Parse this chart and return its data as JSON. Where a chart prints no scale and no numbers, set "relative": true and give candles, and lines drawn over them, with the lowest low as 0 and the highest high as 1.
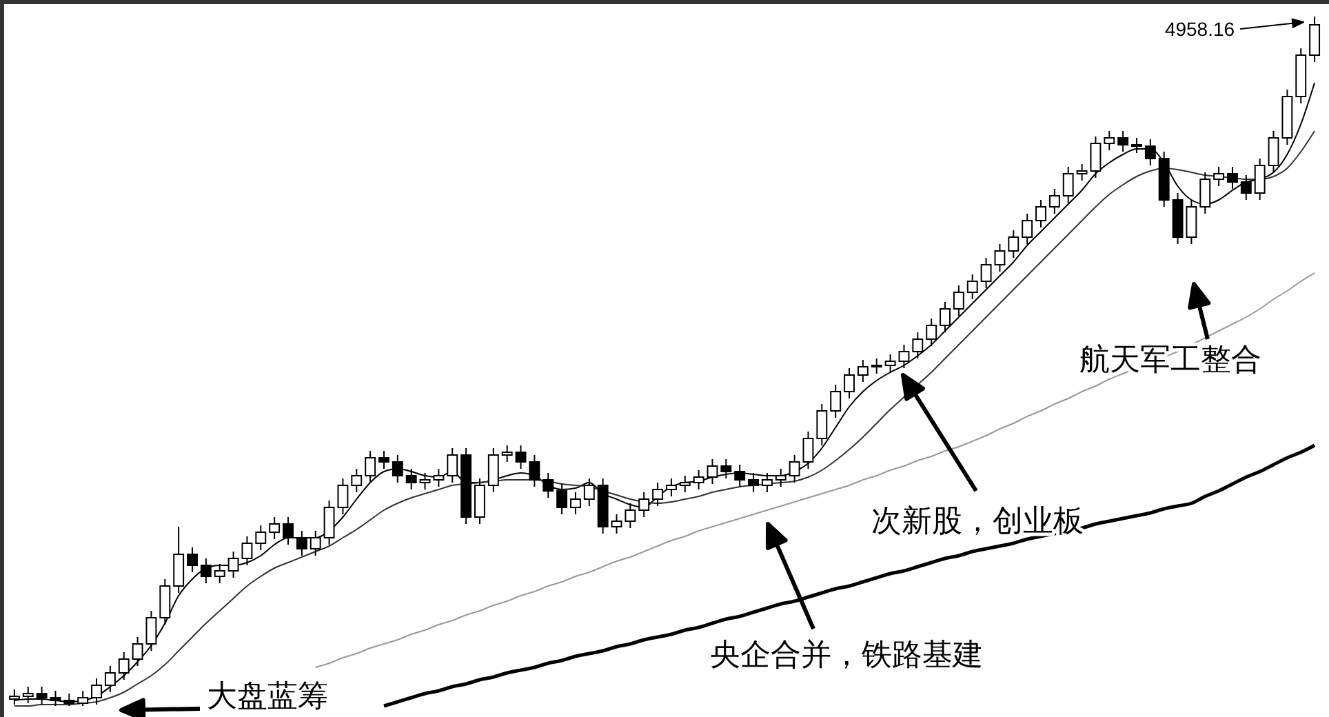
{
  "chart_data": {
    "type": "candlestick",
    "relative": true,
    "categories": [
      null,
      null,
      null,
      null,
      null,
      null,
      null,
      null,
      null,
      null,
      null,
      null,
      null,
      null,
      null,
      null,
      null,
      null,
      null,
      null,
      null,
      null,
      null,
      null,
      null,
      null,
      null,
      null,
      null,
      null,
      null,
      null,
      null,
      null,
      null,
      null,
      null,
      null,
      null,
      null,
      null,
      null,
      null,
      null,
      null,
      null,
      null,
      null,
      null,
      null,
      null,
      null,
      null,
      null,
      null,
      null,
      null,
      null,
      null,
      null,
      null,
      null,
      null,
      null,
      null,
      null,
      null,
      null,
      null,
      null,
      null,
      null,
      null,
      null,
      null,
      null,
      null,
      null,
      null,
      null,
      null,
      null,
      null,
      null,
      null,
      null,
      null,
      null,
      null,
      null,
      null,
      null,
      null,
      null,
      null,
      null
    ],
    "ohlc": [
      [
        0.01,
        0.024,
        0.002,
        0.014
      ],
      [
        0.014,
        0.028,
        0.004,
        0.018
      ],
      [
        0.018,
        0.028,
        0.002,
        0.012
      ],
      [
        0.012,
        0.022,
        0.0,
        0.008
      ],
      [
        0.008,
        0.018,
        0.0,
        0.004
      ],
      [
        0.004,
        0.022,
        0.0,
        0.012
      ],
      [
        0.012,
        0.04,
        0.002,
        0.03
      ],
      [
        0.03,
        0.058,
        0.02,
        0.048
      ],
      [
        0.048,
        0.078,
        0.038,
        0.068
      ],
      [
        0.068,
        0.1,
        0.058,
        0.09
      ],
      [
        0.09,
        0.138,
        0.08,
        0.128
      ],
      [
        0.128,
        0.184,
        0.118,
        0.174
      ],
      [
        0.174,
        0.26,
        0.164,
        0.22
      ],
      [
        0.22,
        0.23,
        0.194,
        0.204
      ],
      [
        0.204,
        0.214,
        0.178,
        0.188
      ],
      [
        0.188,
        0.206,
        0.178,
        0.196
      ],
      [
        0.196,
        0.224,
        0.186,
        0.214
      ],
      [
        0.214,
        0.246,
        0.204,
        0.236
      ],
      [
        0.236,
        0.262,
        0.226,
        0.252
      ],
      [
        0.252,
        0.274,
        0.242,
        0.264
      ],
      [
        0.264,
        0.274,
        0.234,
        0.244
      ],
      [
        0.244,
        0.254,
        0.218,
        0.228
      ],
      [
        0.228,
        0.254,
        0.218,
        0.244
      ],
      [
        0.244,
        0.298,
        0.234,
        0.288
      ],
      [
        0.288,
        0.33,
        0.278,
        0.32
      ],
      [
        0.32,
        0.344,
        0.31,
        0.334
      ],
      [
        0.334,
        0.37,
        0.324,
        0.36
      ],
      [
        0.36,
        0.37,
        0.344,
        0.354
      ],
      [
        0.354,
        0.364,
        0.324,
        0.334
      ],
      [
        0.334,
        0.344,
        0.314,
        0.324
      ],
      [
        0.324,
        0.338,
        0.314,
        0.328
      ],
      [
        0.328,
        0.344,
        0.318,
        0.334
      ],
      [
        0.334,
        0.374,
        0.324,
        0.364
      ],
      [
        0.364,
        0.374,
        0.264,
        0.274
      ],
      [
        0.274,
        0.33,
        0.264,
        0.32
      ],
      [
        0.32,
        0.374,
        0.31,
        0.364
      ],
      [
        0.364,
        0.378,
        0.354,
        0.368
      ],
      [
        0.368,
        0.378,
        0.344,
        0.354
      ],
      [
        0.354,
        0.364,
        0.318,
        0.328
      ],
      [
        0.328,
        0.338,
        0.302,
        0.312
      ],
      [
        0.312,
        0.322,
        0.278,
        0.288
      ],
      [
        0.288,
        0.31,
        0.278,
        0.3
      ],
      [
        0.3,
        0.33,
        0.29,
        0.32
      ],
      [
        0.32,
        0.33,
        0.25,
        0.26
      ],
      [
        0.26,
        0.278,
        0.25,
        0.268
      ],
      [
        0.268,
        0.294,
        0.258,
        0.284
      ],
      [
        0.284,
        0.31,
        0.274,
        0.3
      ],
      [
        0.3,
        0.324,
        0.29,
        0.314
      ],
      [
        0.314,
        0.33,
        0.304,
        0.32
      ],
      [
        0.32,
        0.334,
        0.31,
        0.324
      ],
      [
        0.324,
        0.342,
        0.314,
        0.332
      ],
      [
        0.332,
        0.358,
        0.322,
        0.348
      ],
      [
        0.348,
        0.358,
        0.33,
        0.34
      ],
      [
        0.34,
        0.35,
        0.318,
        0.328
      ],
      [
        0.328,
        0.338,
        0.31,
        0.32
      ],
      [
        0.32,
        0.338,
        0.31,
        0.328
      ],
      [
        0.328,
        0.344,
        0.318,
        0.334
      ],
      [
        0.334,
        0.364,
        0.324,
        0.354
      ],
      [
        0.354,
        0.398,
        0.344,
        0.388
      ],
      [
        0.388,
        0.438,
        0.378,
        0.428
      ],
      [
        0.428,
        0.466,
        0.418,
        0.456
      ],
      [
        0.456,
        0.49,
        0.446,
        0.48
      ],
      [
        0.48,
        0.502,
        0.47,
        0.492
      ],
      [
        0.492,
        0.504,
        0.482,
        0.494
      ],
      [
        0.494,
        0.51,
        0.484,
        0.5
      ],
      [
        0.5,
        0.524,
        0.49,
        0.514
      ],
      [
        0.514,
        0.542,
        0.504,
        0.532
      ],
      [
        0.532,
        0.562,
        0.522,
        0.552
      ],
      [
        0.552,
        0.586,
        0.542,
        0.576
      ],
      [
        0.576,
        0.61,
        0.566,
        0.6
      ],
      [
        0.6,
        0.626,
        0.59,
        0.616
      ],
      [
        0.616,
        0.65,
        0.606,
        0.64
      ],
      [
        0.64,
        0.67,
        0.63,
        0.66
      ],
      [
        0.66,
        0.69,
        0.65,
        0.68
      ],
      [
        0.68,
        0.714,
        0.67,
        0.704
      ],
      [
        0.704,
        0.734,
        0.694,
        0.724
      ],
      [
        0.724,
        0.75,
        0.714,
        0.74
      ],
      [
        0.74,
        0.782,
        0.73,
        0.772
      ],
      [
        0.772,
        0.786,
        0.762,
        0.776
      ],
      [
        0.776,
        0.826,
        0.766,
        0.816
      ],
      [
        0.816,
        0.834,
        0.806,
        0.824
      ],
      [
        0.824,
        0.834,
        0.804,
        0.814
      ],
      [
        0.814,
        0.824,
        0.802,
        0.812
      ],
      [
        0.812,
        0.822,
        0.784,
        0.794
      ],
      [
        0.794,
        0.804,
        0.724,
        0.734
      ],
      [
        0.734,
        0.744,
        0.67,
        0.68
      ],
      [
        0.68,
        0.734,
        0.67,
        0.724
      ],
      [
        0.724,
        0.774,
        0.714,
        0.764
      ],
      [
        0.764,
        0.782,
        0.754,
        0.772
      ],
      [
        0.772,
        0.782,
        0.75,
        0.76
      ],
      [
        0.76,
        0.77,
        0.734,
        0.744
      ],
      [
        0.744,
        0.794,
        0.734,
        0.784
      ],
      [
        0.784,
        0.834,
        0.774,
        0.824
      ],
      [
        0.824,
        0.894,
        0.814,
        0.884
      ],
      [
        0.884,
        0.954,
        0.874,
        0.944
      ],
      [
        0.944,
        1.0,
        0.934,
        0.988
      ]
    ],
    "series": [
      {
        "type": "line",
        "color": "#000000",
        "values": [
          0.008,
          0.01,
          0.01,
          0.008,
          0.006,
          0.008,
          0.014,
          0.028,
          0.044,
          0.064,
          0.088,
          0.12,
          0.16,
          0.184,
          0.2,
          0.204,
          0.204,
          0.208,
          0.218,
          0.234,
          0.244,
          0.244,
          0.244,
          0.254,
          0.274,
          0.3,
          0.324,
          0.34,
          0.344,
          0.34,
          0.334,
          0.332,
          0.34,
          0.324,
          0.324,
          0.328,
          0.334,
          0.338,
          0.334,
          0.32,
          0.314,
          0.316,
          0.324,
          0.308,
          0.3,
          0.292,
          0.288,
          0.304,
          0.318,
          0.324,
          0.326,
          0.332,
          0.336,
          0.338,
          0.336,
          0.334,
          0.334,
          0.34,
          0.352,
          0.374,
          0.404,
          0.434,
          0.456,
          0.472,
          0.484,
          0.494,
          0.508,
          0.524,
          0.544,
          0.564,
          0.584,
          0.604,
          0.624,
          0.644,
          0.668,
          0.688,
          0.708,
          0.728,
          0.748,
          0.772,
          0.788,
          0.8,
          0.808,
          0.808,
          0.788,
          0.754,
          0.734,
          0.728,
          0.734,
          0.748,
          0.76,
          0.764,
          0.774,
          0.8,
          0.844,
          0.904
        ]
      },
      {
        "type": "line",
        "color": "#333333",
        "values": [
          0,
          0,
          0.002,
          0.002,
          0.002,
          0.004,
          0.006,
          0.012,
          0.02,
          0.032,
          0.044,
          0.06,
          0.08,
          0.1,
          0.12,
          0.138,
          0.156,
          0.174,
          0.188,
          0.2,
          0.208,
          0.216,
          0.224,
          0.232,
          0.244,
          0.256,
          0.27,
          0.284,
          0.294,
          0.302,
          0.308,
          0.314,
          0.32,
          0.322,
          0.324,
          0.326,
          0.328,
          0.328,
          0.328,
          0.326,
          0.322,
          0.32,
          0.318,
          0.312,
          0.306,
          0.3,
          0.296,
          0.294,
          0.296,
          0.3,
          0.304,
          0.31,
          0.314,
          0.318,
          0.32,
          0.322,
          0.324,
          0.326,
          0.332,
          0.342,
          0.356,
          0.372,
          0.39,
          0.41,
          0.43,
          0.448,
          0.466,
          0.484,
          0.504,
          0.524,
          0.544,
          0.564,
          0.584,
          0.604,
          0.624,
          0.644,
          0.664,
          0.684,
          0.704,
          0.724,
          0.742,
          0.756,
          0.768,
          0.776,
          0.78,
          0.778,
          0.774,
          0.77,
          0.768,
          0.766,
          0.764,
          0.764,
          0.768,
          0.78,
          0.804,
          0.834
        ]
      },
      {
        "type": "line",
        "color": "#999999",
        "values": [
          null,
          null,
          null,
          null,
          null,
          null,
          null,
          null,
          null,
          null,
          null,
          null,
          null,
          null,
          null,
          null,
          null,
          null,
          null,
          null,
          null,
          null,
          0.056,
          0.062,
          0.07,
          0.076,
          0.084,
          0.09,
          0.096,
          0.104,
          0.11,
          0.118,
          0.124,
          0.132,
          0.138,
          0.146,
          0.152,
          0.16,
          0.166,
          0.174,
          0.18,
          0.188,
          0.194,
          0.202,
          0.21,
          0.216,
          0.224,
          0.232,
          0.24,
          0.246,
          0.254,
          0.26,
          0.266,
          0.272,
          0.278,
          0.284,
          0.29,
          0.296,
          0.302,
          0.308,
          0.314,
          0.32,
          0.328,
          0.334,
          0.342,
          0.348,
          0.356,
          0.362,
          0.37,
          0.376,
          0.384,
          0.392,
          0.402,
          0.41,
          0.42,
          0.428,
          0.438,
          0.446,
          0.456,
          0.464,
          0.474,
          0.482,
          0.49,
          0.498,
          0.506,
          0.514,
          0.524,
          0.534,
          0.544,
          0.554,
          0.564,
          0.576,
          0.59,
          0.602,
          0.616,
          0.628
        ]
      },
      {
        "type": "line",
        "color": "#000000",
        "values": [
          null,
          null,
          null,
          null,
          null,
          null,
          null,
          null,
          null,
          null,
          null,
          null,
          null,
          null,
          null,
          null,
          null,
          null,
          null,
          null,
          null,
          null,
          null,
          null,
          null,
          null,
          null,
          0,
          0.006,
          0.012,
          0.018,
          0.022,
          0.028,
          0.032,
          0.038,
          0.042,
          0.048,
          0.052,
          0.056,
          0.062,
          0.066,
          0.072,
          0.076,
          0.08,
          0.086,
          0.09,
          0.096,
          0.1,
          0.104,
          0.11,
          0.114,
          0.12,
          0.126,
          0.13,
          0.136,
          0.142,
          0.148,
          0.152,
          0.158,
          0.164,
          0.17,
          0.174,
          0.18,
          0.186,
          0.192,
          0.196,
          0.202,
          0.208,
          0.214,
          0.218,
          0.224,
          0.228,
          0.232,
          0.236,
          0.242,
          0.246,
          0.25,
          0.254,
          0.258,
          0.264,
          0.268,
          0.272,
          0.276,
          0.28,
          0.286,
          0.29,
          0.294,
          0.304,
          0.312,
          0.322,
          0.332,
          0.34,
          0.35,
          0.36,
          0.368,
          0.378
        ]
      }
    ],
    "annotations": [
      "4958.16",
      "大盘蓝筹",
      "央企合并，铁路基建",
      "次新股，创业板",
      "航天军工整合"
    ]
  }
}
